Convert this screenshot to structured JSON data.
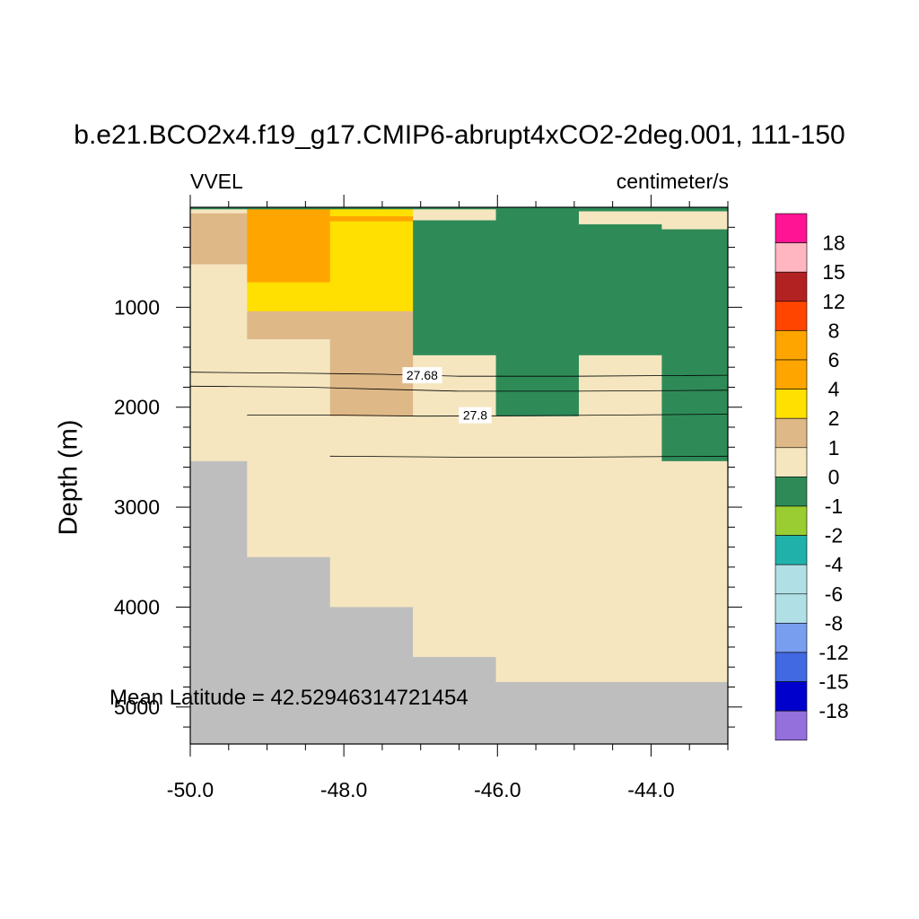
{
  "title": "b.e21.BCO2x4.f19_g17.CMIP6-abrupt4xCO2-2deg.001, 111-150",
  "left_string": "VVEL",
  "right_string": "centimeter/s",
  "annotation": "Mean Latitude = 42.52946314721454",
  "chart_data": {
    "type": "heatmap",
    "title": "b.e21.BCO2x4.f19_g17.CMIP6-abrupt4xCO2-2deg.001, 111-150",
    "variable": "VVEL",
    "units": "centimeter/s",
    "xlabel": "",
    "ylabel": "Depth (m)",
    "xlim": [
      -50.0,
      -43.0
    ],
    "ylim": [
      5370,
      0
    ],
    "x_ticks": [
      -50.0,
      -48.0,
      -46.0,
      -44.0
    ],
    "x_tick_labels": [
      "-50.0",
      "-48.0",
      "-46.0",
      "-44.0"
    ],
    "y_ticks": [
      1000,
      2000,
      3000,
      4000,
      5000
    ],
    "y_tick_labels": [
      "1000",
      "2000",
      "3000",
      "4000",
      "5000"
    ],
    "colorbar_levels": [
      "18",
      "15",
      "12",
      "8",
      "6",
      "4",
      "2",
      "1",
      "0",
      "-1",
      "-2",
      "-4",
      "-6",
      "-8",
      "-12",
      "-15",
      "-18"
    ],
    "colorbar_colors": [
      "#ff1493",
      "#ffb6c1",
      "#b22222",
      "#ff4500",
      "#ffa500",
      "#ffa500",
      "#ffe000",
      "#deb887",
      "#f5e6c0",
      "#2e8b57",
      "#9acd32",
      "#20b2aa",
      "#b0e0e6",
      "#b0e0e6",
      "#789ef0",
      "#4169e1",
      "#0000cd",
      "#9370db"
    ],
    "land_color": "#bebebe",
    "columns": [
      {
        "x0": -50.0,
        "x1": -49.26,
        "cells": [
          {
            "z0": 0,
            "z1": 20,
            "color": "#2e8b57"
          },
          {
            "z0": 20,
            "z1": 60,
            "color": "#f5e6c0"
          },
          {
            "z0": 60,
            "z1": 570,
            "color": "#deb887"
          },
          {
            "z0": 570,
            "z1": 2540,
            "color": "#f5e6c0"
          },
          {
            "z0": 2540,
            "z1": 5370,
            "color": "#bebebe"
          }
        ]
      },
      {
        "x0": -49.26,
        "x1": -48.18,
        "cells": [
          {
            "z0": 0,
            "z1": 20,
            "color": "#2e8b57"
          },
          {
            "z0": 20,
            "z1": 750,
            "color": "#ffa500"
          },
          {
            "z0": 750,
            "z1": 1040,
            "color": "#ffe000"
          },
          {
            "z0": 1040,
            "z1": 1320,
            "color": "#deb887"
          },
          {
            "z0": 1320,
            "z1": 3500,
            "color": "#f5e6c0"
          },
          {
            "z0": 3500,
            "z1": 5370,
            "color": "#bebebe"
          }
        ]
      },
      {
        "x0": -48.18,
        "x1": -47.1,
        "cells": [
          {
            "z0": 0,
            "z1": 20,
            "color": "#2e8b57"
          },
          {
            "z0": 20,
            "z1": 90,
            "color": "#ffe000"
          },
          {
            "z0": 90,
            "z1": 140,
            "color": "#ffa500"
          },
          {
            "z0": 140,
            "z1": 1040,
            "color": "#ffe000"
          },
          {
            "z0": 1040,
            "z1": 2090,
            "color": "#deb887"
          },
          {
            "z0": 2090,
            "z1": 4000,
            "color": "#f5e6c0"
          },
          {
            "z0": 4000,
            "z1": 5370,
            "color": "#bebebe"
          }
        ]
      },
      {
        "x0": -47.1,
        "x1": -46.02,
        "cells": [
          {
            "z0": 0,
            "z1": 20,
            "color": "#2e8b57"
          },
          {
            "z0": 20,
            "z1": 130,
            "color": "#f5e6c0"
          },
          {
            "z0": 130,
            "z1": 1480,
            "color": "#2e8b57"
          },
          {
            "z0": 1480,
            "z1": 4500,
            "color": "#f5e6c0"
          },
          {
            "z0": 4500,
            "z1": 5370,
            "color": "#bebebe"
          }
        ]
      },
      {
        "x0": -46.02,
        "x1": -44.94,
        "cells": [
          {
            "z0": 0,
            "z1": 2090,
            "color": "#2e8b57"
          },
          {
            "z0": 2090,
            "z1": 4750,
            "color": "#f5e6c0"
          },
          {
            "z0": 4750,
            "z1": 5370,
            "color": "#bebebe"
          }
        ]
      },
      {
        "x0": -44.94,
        "x1": -43.86,
        "cells": [
          {
            "z0": 0,
            "z1": 40,
            "color": "#2e8b57"
          },
          {
            "z0": 40,
            "z1": 170,
            "color": "#f5e6c0"
          },
          {
            "z0": 170,
            "z1": 1480,
            "color": "#2e8b57"
          },
          {
            "z0": 1480,
            "z1": 4750,
            "color": "#f5e6c0"
          },
          {
            "z0": 4750,
            "z1": 5370,
            "color": "#bebebe"
          }
        ]
      },
      {
        "x0": -43.86,
        "x1": -43.0,
        "cells": [
          {
            "z0": 0,
            "z1": 40,
            "color": "#2e8b57"
          },
          {
            "z0": 40,
            "z1": 220,
            "color": "#f5e6c0"
          },
          {
            "z0": 220,
            "z1": 2540,
            "color": "#2e8b57"
          },
          {
            "z0": 2540,
            "z1": 4750,
            "color": "#f5e6c0"
          },
          {
            "z0": 4750,
            "z1": 5370,
            "color": "#bebebe"
          }
        ]
      }
    ],
    "contours": [
      {
        "label": "27.68",
        "label_at": [
          -46.98,
          1680
        ],
        "points": [
          [
            -50.0,
            1650
          ],
          [
            -48.5,
            1660
          ],
          [
            -47.5,
            1670
          ],
          [
            -46.5,
            1690
          ],
          [
            -45.0,
            1690
          ],
          [
            -43.0,
            1680
          ]
        ]
      },
      {
        "label": "",
        "points": [
          [
            -50.0,
            1790
          ],
          [
            -48.5,
            1800
          ],
          [
            -47.5,
            1820
          ],
          [
            -46.5,
            1840
          ],
          [
            -45.0,
            1840
          ],
          [
            -43.0,
            1830
          ]
        ]
      },
      {
        "label": "27.8",
        "label_at": [
          -46.29,
          2080
        ],
        "points": [
          [
            -49.26,
            2080
          ],
          [
            -48.0,
            2080
          ],
          [
            -47.0,
            2090
          ],
          [
            -45.5,
            2085
          ],
          [
            -43.0,
            2070
          ]
        ]
      },
      {
        "label": "",
        "points": [
          [
            -48.18,
            2490
          ],
          [
            -46.5,
            2500
          ],
          [
            -45.0,
            2500
          ],
          [
            -43.0,
            2490
          ]
        ]
      }
    ]
  }
}
